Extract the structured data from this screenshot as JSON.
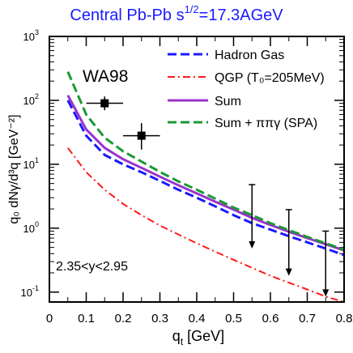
{
  "chart_data": {
    "type": "line",
    "title": {
      "main": "Central Pb-Pb  s",
      "superscript": "1/2",
      "suffix": "=17.3AGeV"
    },
    "experiment_label": "WA98",
    "cut_label": "2.35<y<2.95",
    "xlabel": {
      "main": "q",
      "subscript": "t",
      "unit": "[GeV]"
    },
    "ylabel": "q₀ dNγ/d³q  [GeV⁻²]",
    "x_range": [
      0,
      0.8
    ],
    "y_range": [
      0.07,
      1000
    ],
    "y_scale": "log",
    "x_ticks": [
      {
        "value": 0,
        "label": "0"
      },
      {
        "value": 0.1,
        "label": "0.1"
      },
      {
        "value": 0.2,
        "label": "0.2"
      },
      {
        "value": 0.3,
        "label": "0.3"
      },
      {
        "value": 0.4,
        "label": "0.4"
      },
      {
        "value": 0.5,
        "label": "0.5"
      },
      {
        "value": 0.6,
        "label": "0.6"
      },
      {
        "value": 0.7,
        "label": "0.7"
      },
      {
        "value": 0.8,
        "label": "0.8"
      }
    ],
    "y_ticks": [
      {
        "value": 0.1,
        "base": "10",
        "exp": "-1"
      },
      {
        "value": 1,
        "base": "10",
        "exp": "0"
      },
      {
        "value": 10,
        "base": "10",
        "exp": "1"
      },
      {
        "value": 100,
        "base": "10",
        "exp": "2"
      },
      {
        "value": 1000,
        "base": "10",
        "exp": "3"
      }
    ],
    "legend_position": "top-right",
    "series": [
      {
        "name": "Hadron Gas",
        "color": "#1a1aff",
        "dash": "long-dash",
        "x": [
          0.05,
          0.1,
          0.15,
          0.2,
          0.25,
          0.3,
          0.35,
          0.4,
          0.45,
          0.5,
          0.55,
          0.6,
          0.65,
          0.7,
          0.75,
          0.8
        ],
        "y": [
          100,
          28,
          14,
          10,
          7.5,
          5.5,
          4.0,
          3.0,
          2.2,
          1.6,
          1.2,
          0.95,
          0.75,
          0.6,
          0.48,
          0.38
        ]
      },
      {
        "name": "QGP (T₀=205MeV)",
        "color": "#ff1a1a",
        "dash": "dash-dot",
        "x": [
          0.05,
          0.1,
          0.15,
          0.2,
          0.25,
          0.3,
          0.35,
          0.4,
          0.45,
          0.5,
          0.55,
          0.6,
          0.65,
          0.7,
          0.75,
          0.8
        ],
        "y": [
          18,
          7.5,
          4.0,
          2.4,
          1.6,
          1.1,
          0.8,
          0.58,
          0.43,
          0.32,
          0.24,
          0.18,
          0.14,
          0.11,
          0.085,
          0.07
        ]
      },
      {
        "name": "Sum",
        "color": "#9933cc",
        "dash": "solid",
        "x": [
          0.05,
          0.1,
          0.15,
          0.2,
          0.25,
          0.3,
          0.35,
          0.4,
          0.45,
          0.5,
          0.55,
          0.6,
          0.65,
          0.7,
          0.75,
          0.8
        ],
        "y": [
          120,
          35,
          18,
          12,
          8.8,
          6.4,
          4.7,
          3.5,
          2.6,
          1.95,
          1.45,
          1.12,
          0.88,
          0.7,
          0.56,
          0.45
        ]
      },
      {
        "name": "Sum + ππγ (SPA)",
        "color": "#1a9933",
        "dash": "dash",
        "x": [
          0.05,
          0.1,
          0.15,
          0.2,
          0.25,
          0.3,
          0.35,
          0.4,
          0.45,
          0.5,
          0.55,
          0.6,
          0.65,
          0.7,
          0.75,
          0.8
        ],
        "y": [
          280,
          60,
          26,
          16,
          11,
          7.6,
          5.4,
          4.0,
          2.9,
          2.1,
          1.6,
          1.2,
          0.93,
          0.73,
          0.58,
          0.46
        ]
      }
    ],
    "data_points": [
      {
        "x": 0.15,
        "y": 90,
        "x_err": 0.05,
        "y_low": 70,
        "y_high": 115
      },
      {
        "x": 0.25,
        "y": 28,
        "x_err": 0.05,
        "y_low": 17,
        "y_high": 44
      }
    ],
    "upper_limits": [
      {
        "x": 0.55,
        "y_top": 4.8,
        "y_bottom": 0.48
      },
      {
        "x": 0.65,
        "y_top": 1.95,
        "y_bottom": 0.18
      },
      {
        "x": 0.75,
        "y_top": 0.9,
        "y_bottom": 0.085
      }
    ]
  }
}
